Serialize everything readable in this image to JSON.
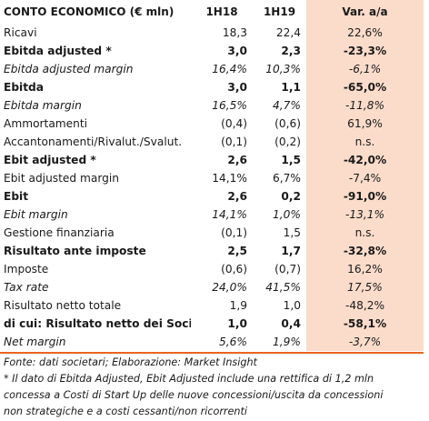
{
  "table": {
    "header": {
      "label": "CONTO ECONOMICO (€ mln)",
      "col1": "1H18",
      "col2": "1H19",
      "col3": "Var. a/a"
    },
    "rows": [
      {
        "label": "Ricavi",
        "v1": "18,3",
        "v2": "22,4",
        "v3": "22,6%",
        "style": "norm"
      },
      {
        "label": "Ebitda adjusted *",
        "v1": "3,0",
        "v2": "2,3",
        "v3": "-23,3%",
        "style": "bold"
      },
      {
        "label": "Ebitda adjusted margin",
        "v1": "16,4%",
        "v2": "10,3%",
        "v3": "-6,1%",
        "style": "ital"
      },
      {
        "label": "Ebitda",
        "v1": "3,0",
        "v2": "1,1",
        "v3": "-65,0%",
        "style": "bold"
      },
      {
        "label": "Ebitda margin",
        "v1": "16,5%",
        "v2": "4,7%",
        "v3": "-11,8%",
        "style": "ital"
      },
      {
        "label": "Ammortamenti",
        "v1": "(0,4)",
        "v2": "(0,6)",
        "v3": "61,9%",
        "style": "norm"
      },
      {
        "label": "Accantonamenti/Rivalut./Svalut.",
        "v1": "(0,1)",
        "v2": "(0,2)",
        "v3": "n.s.",
        "style": "norm"
      },
      {
        "label": "Ebit adjusted *",
        "v1": "2,6",
        "v2": "1,5",
        "v3": "-42,0%",
        "style": "bold"
      },
      {
        "label": "Ebit adjusted margin",
        "v1": "14,1%",
        "v2": "6,7%",
        "v3": "-7,4%",
        "style": "norm"
      },
      {
        "label": "Ebit",
        "v1": "2,6",
        "v2": "0,2",
        "v3": "-91,0%",
        "style": "bold"
      },
      {
        "label": "Ebit margin",
        "v1": "14,1%",
        "v2": "1,0%",
        "v3": "-13,1%",
        "style": "ital"
      },
      {
        "label": "Gestione finanziaria",
        "v1": "(0,1)",
        "v2": "1,5",
        "v3": "n.s.",
        "style": "norm"
      },
      {
        "label": "Risultato ante imposte",
        "v1": "2,5",
        "v2": "1,7",
        "v3": "-32,8%",
        "style": "bold"
      },
      {
        "label": "Imposte",
        "v1": "(0,6)",
        "v2": "(0,7)",
        "v3": "16,2%",
        "style": "norm"
      },
      {
        "label": "Tax rate",
        "v1": "24,0%",
        "v2": "41,5%",
        "v3": "17,5%",
        "style": "ital"
      },
      {
        "label": "Risultato netto totale",
        "v1": "1,9",
        "v2": "1,0",
        "v3": "-48,2%",
        "style": "norm"
      },
      {
        "label": "di cui: Risultato netto dei Soci",
        "v1": "1,0",
        "v2": "0,4",
        "v3": "-58,1%",
        "style": "bold"
      },
      {
        "label": "Net margin",
        "v1": "5,6%",
        "v2": "1,9%",
        "v3": "-3,7%",
        "style": "ital"
      }
    ]
  },
  "notes": {
    "source": "Fonte: dati societari; Elaborazione: Market Insight",
    "footnote_line1": "* Il dato di Ebitda Adjusted, Ebit Adjusted include una rettifica di 1,2 mln",
    "footnote_line2": "concessa a Costi di Start Up delle nuove concessioni/uscita da concessioni",
    "footnote_line3": "non strategiche e a costi cessanti/non ricorrenti"
  },
  "colors": {
    "accent_rule": "#e86420",
    "var_column_bg": "#fbdcca"
  }
}
